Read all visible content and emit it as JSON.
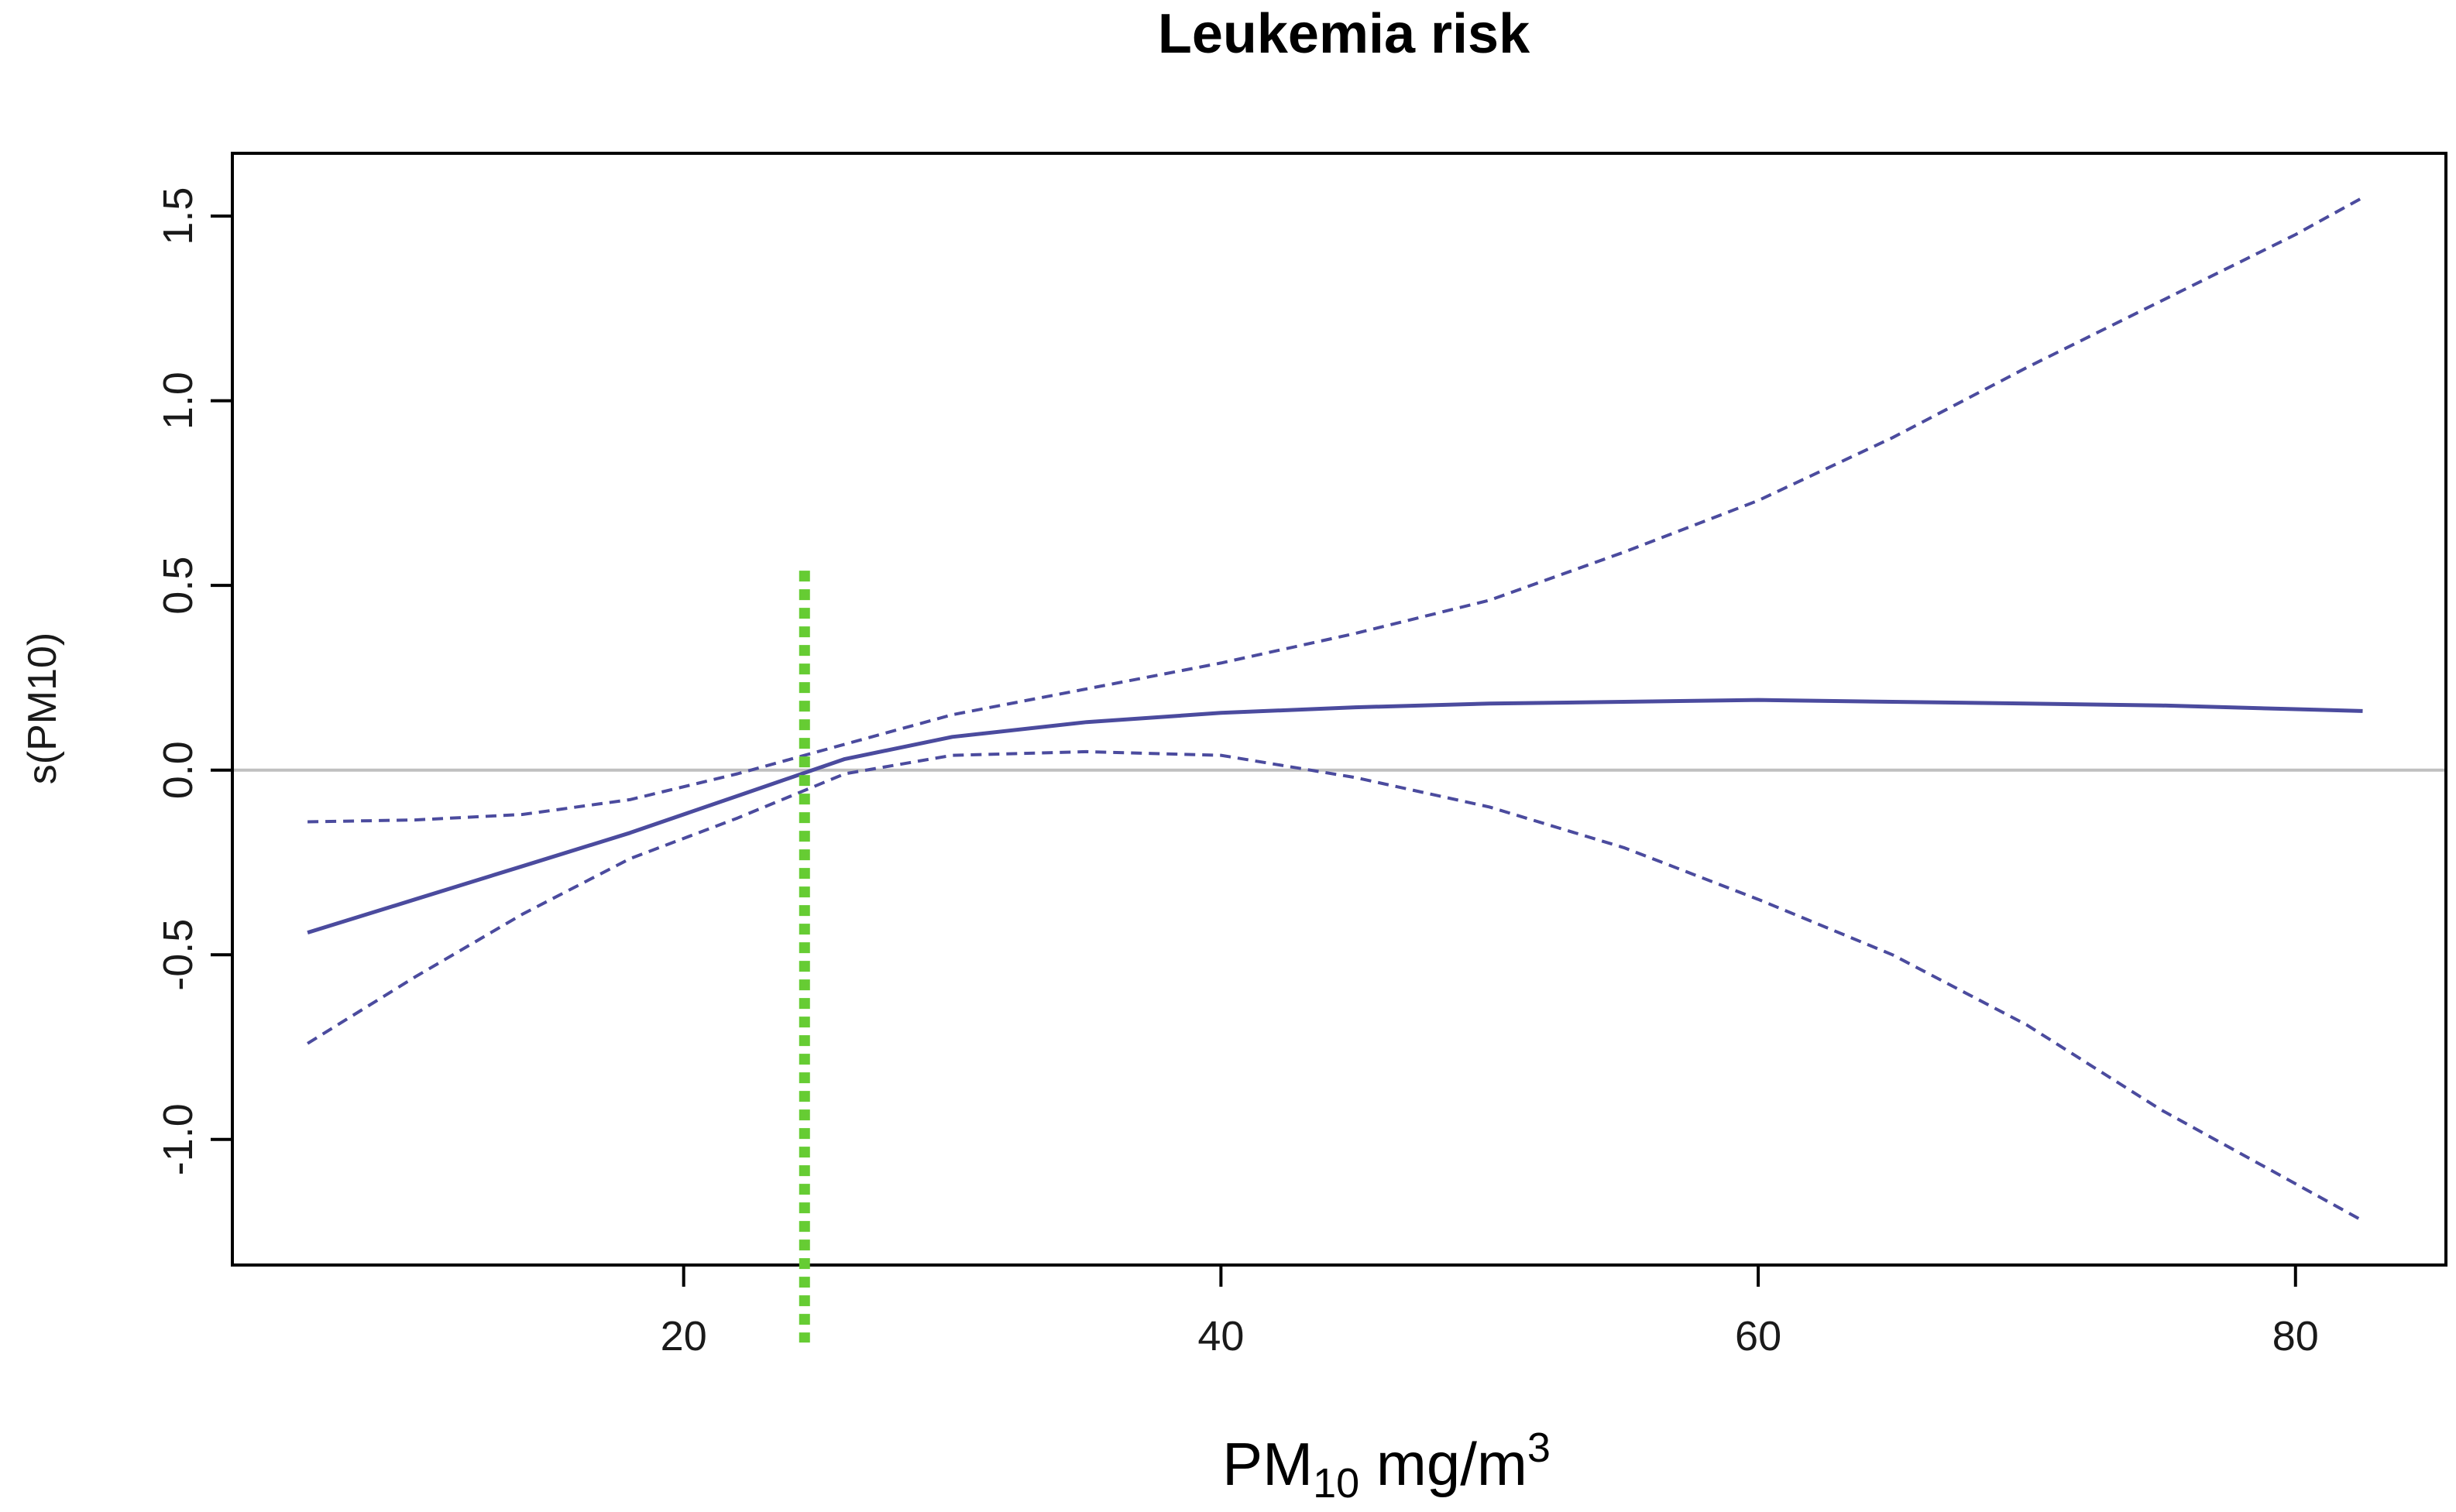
{
  "chart_data": {
    "type": "line",
    "title": "Leukemia risk",
    "xlabel": {
      "base": "PM",
      "subscript": "10",
      "unit": " mg/m",
      "superscript": "3"
    },
    "ylabel": "s(PM10)",
    "xlim": [
      3.2,
      85.6
    ],
    "ylim": [
      -1.34,
      1.67
    ],
    "x_ticks": [
      20,
      40,
      60,
      80
    ],
    "x_tick_labels": [
      "20",
      "40",
      "60",
      "80"
    ],
    "y_ticks": [
      -1.0,
      -0.5,
      0.0,
      0.5,
      1.0,
      1.5
    ],
    "y_tick_labels": [
      "-1.0",
      "-0.5",
      "0.0",
      "0.5",
      "1.0",
      "1.5"
    ],
    "reference_line": {
      "y": 0.0,
      "color": "#c0c0c0"
    },
    "threshold_line": {
      "x": 24.5,
      "y_from": -1.55,
      "y_to": 0.54,
      "color": "#66cc33"
    },
    "series_color": "#4b4b9e",
    "series": [
      {
        "name": "smooth estimate",
        "style": "solid",
        "x": [
          6,
          10,
          14,
          18,
          22,
          26,
          30,
          35,
          40,
          45,
          50,
          55,
          60,
          65,
          70,
          75,
          80,
          82.5
        ],
        "y": [
          -0.44,
          -0.35,
          -0.26,
          -0.17,
          -0.07,
          0.03,
          0.09,
          0.13,
          0.155,
          0.17,
          0.18,
          0.185,
          0.19,
          0.185,
          0.18,
          0.175,
          0.165,
          0.16
        ]
      },
      {
        "name": "upper confidence bound",
        "style": "dashed",
        "x": [
          6,
          10,
          14,
          18,
          22,
          26,
          30,
          35,
          40,
          45,
          50,
          55,
          60,
          65,
          70,
          75,
          80,
          82.5
        ],
        "y": [
          -0.14,
          -0.135,
          -0.12,
          -0.08,
          -0.01,
          0.07,
          0.15,
          0.22,
          0.29,
          0.37,
          0.46,
          0.59,
          0.73,
          0.9,
          1.09,
          1.27,
          1.45,
          1.55
        ]
      },
      {
        "name": "lower confidence bound",
        "style": "dashed",
        "x": [
          6,
          10,
          14,
          18,
          22,
          26,
          30,
          35,
          40,
          45,
          50,
          55,
          60,
          65,
          70,
          75,
          80,
          82.5
        ],
        "y": [
          -0.74,
          -0.56,
          -0.39,
          -0.24,
          -0.13,
          -0.01,
          0.04,
          0.05,
          0.04,
          -0.02,
          -0.1,
          -0.21,
          -0.35,
          -0.5,
          -0.69,
          -0.92,
          -1.12,
          -1.22
        ]
      }
    ]
  }
}
